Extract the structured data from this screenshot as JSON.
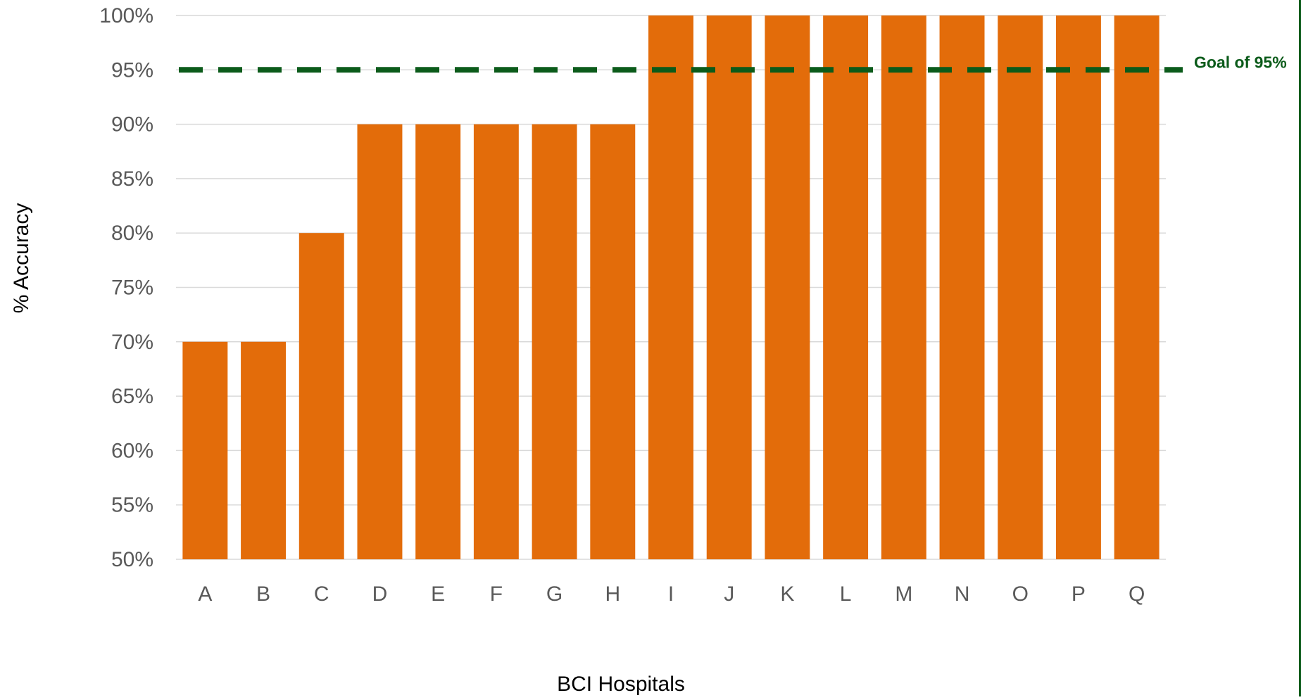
{
  "chart_data": {
    "type": "bar",
    "title": "",
    "xlabel": "BCI Hospitals",
    "ylabel": "% Accuracy",
    "ylim": [
      50,
      100
    ],
    "y_ticks": [
      50,
      55,
      60,
      65,
      70,
      75,
      80,
      85,
      90,
      95,
      100
    ],
    "y_tick_labels": [
      "50%",
      "55%",
      "60%",
      "65%",
      "70%",
      "75%",
      "80%",
      "85%",
      "90%",
      "95%",
      "100%"
    ],
    "categories": [
      "A",
      "B",
      "C",
      "D",
      "E",
      "F",
      "G",
      "H",
      "I",
      "J",
      "K",
      "L",
      "M",
      "N",
      "O",
      "P",
      "Q"
    ],
    "values": [
      70,
      70,
      80,
      90,
      90,
      90,
      90,
      90,
      100,
      100,
      100,
      100,
      100,
      100,
      100,
      100,
      100
    ],
    "grid": true,
    "goal_line": {
      "value": 95,
      "label": "Goal of 95%",
      "style": "dashed"
    },
    "colors": {
      "bar": "#e36c0a",
      "goal": "#0b5b1a",
      "grid": "#d9d9d9",
      "tick_text": "#595959",
      "axis_title": "#000000"
    }
  }
}
